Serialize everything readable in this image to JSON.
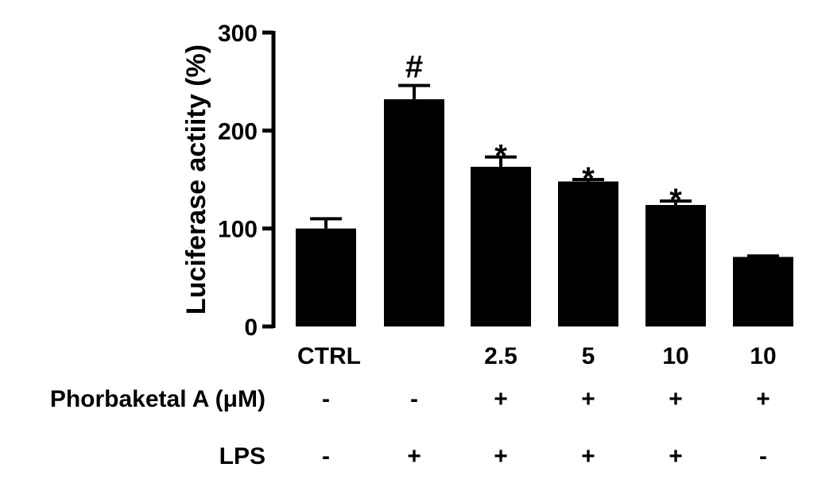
{
  "chart_data": {
    "type": "bar",
    "ylabel": "Luciferase actiity (%)",
    "ylim": [
      0,
      300
    ],
    "yticks": [
      0,
      100,
      200,
      300
    ],
    "categories": [
      "CTRL",
      "",
      "2.5",
      "5",
      "10",
      "10"
    ],
    "values": [
      100,
      232,
      163,
      148,
      124,
      71
    ],
    "errors": [
      10,
      14,
      10,
      2,
      4,
      1
    ],
    "annotations": [
      "",
      "#",
      "*",
      "*",
      "*",
      ""
    ],
    "color": "#000000",
    "grid": false,
    "legend": "none",
    "conditions": [
      {
        "label": "Phorbaketal A (μM)",
        "signs": [
          "-",
          "-",
          "+",
          "+",
          "+",
          "+"
        ]
      },
      {
        "label": "LPS",
        "signs": [
          "-",
          "+",
          "+",
          "+",
          "+",
          "-"
        ]
      }
    ]
  }
}
